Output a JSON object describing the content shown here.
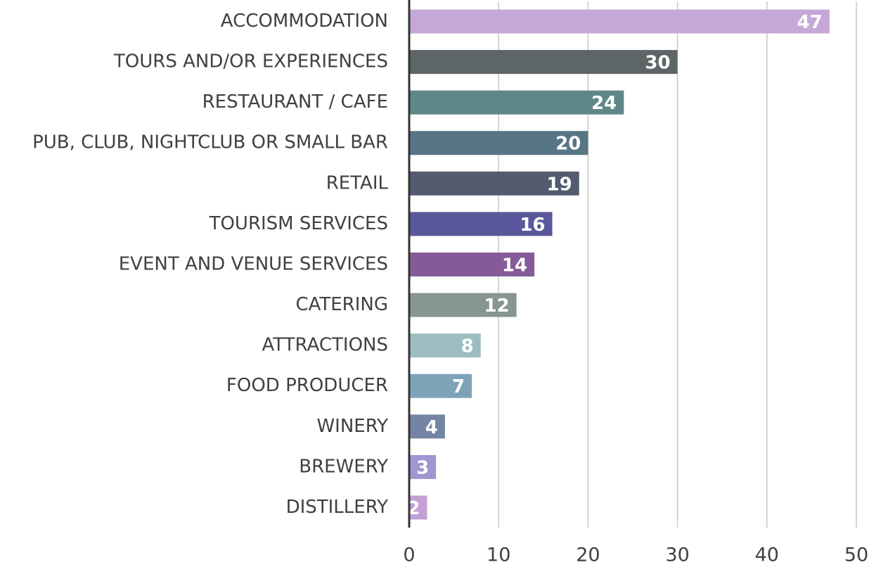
{
  "chart_data": {
    "type": "hbar",
    "categories": [
      "ACCOMMODATION",
      "TOURS AND/OR EXPERIENCES",
      "RESTAURANT / CAFE",
      "PUB, CLUB, NIGHTCLUB OR SMALL BAR",
      "RETAIL",
      "TOURISM SERVICES",
      "EVENT AND VENUE SERVICES",
      "CATERING",
      "ATTRACTIONS",
      "FOOD PRODUCER",
      "WINERY",
      "BREWERY",
      "DISTILLERY"
    ],
    "values": [
      47,
      30,
      24,
      20,
      19,
      16,
      14,
      12,
      8,
      7,
      4,
      3,
      2
    ],
    "colors": [
      "#c6a8d8",
      "#5e6566",
      "#5e8789",
      "#587585",
      "#535c6e",
      "#5a579c",
      "#845b98",
      "#879593",
      "#9dbcc2",
      "#7ea3b9",
      "#7384a4",
      "#9f96d2",
      "#c49fd4"
    ],
    "xlim": [
      0,
      50
    ],
    "xticks": [
      0,
      10,
      20,
      30,
      40,
      50
    ],
    "grid": true
  }
}
